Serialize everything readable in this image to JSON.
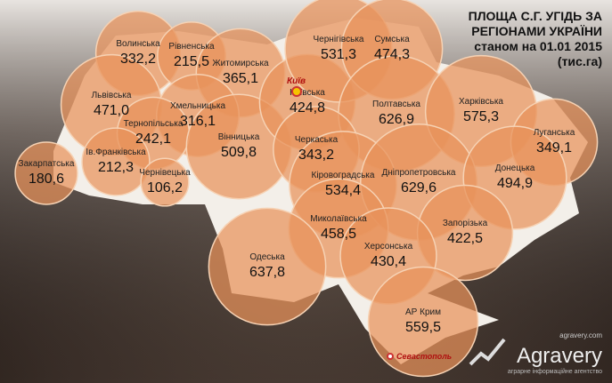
{
  "title": [
    "ПЛОЩА С.Г. УГІДЬ ЗА",
    "РЕГІОНАМИ УКРАЇНИ",
    "станом на 01.01 2015",
    "(тис.га)"
  ],
  "regions": [
    {
      "name": "Волинська",
      "value": 332.2,
      "value_label": "332,2"
    },
    {
      "name": "Рівненська",
      "value": 215.5,
      "value_label": "215,5"
    },
    {
      "name": "Житомирська",
      "value": 365.1,
      "value_label": "365,1"
    },
    {
      "name": "Львівська",
      "value": 471.0,
      "value_label": "471,0"
    },
    {
      "name": "Хмельницька",
      "value": 316.1,
      "value_label": "316,1"
    },
    {
      "name": "Тернопільська",
      "value": 242.1,
      "value_label": "242,1"
    },
    {
      "name": "Закарпатська",
      "value": 180.6,
      "value_label": "180,6"
    },
    {
      "name": "Ів.Франківська",
      "value": 212.3,
      "value_label": "212,3"
    },
    {
      "name": "Чернівецька",
      "value": 106.2,
      "value_label": "106,2"
    },
    {
      "name": "Вінницька",
      "value": 509.8,
      "value_label": "509,8"
    },
    {
      "name": "Київська",
      "value": 424.8,
      "value_label": "424,8"
    },
    {
      "name": "Чернігівська",
      "value": 531.3,
      "value_label": "531,3"
    },
    {
      "name": "Сумська",
      "value": 474.3,
      "value_label": "474,3"
    },
    {
      "name": "Полтавська",
      "value": 626.9,
      "value_label": "626,9"
    },
    {
      "name": "Харківська",
      "value": 575.3,
      "value_label": "575,3"
    },
    {
      "name": "Луганська",
      "value": 349.1,
      "value_label": "349,1"
    },
    {
      "name": "Черкаська",
      "value": 343.2,
      "value_label": "343,2"
    },
    {
      "name": "Кіровоградська",
      "value": 534.4,
      "value_label": "534,4"
    },
    {
      "name": "Дніпропетровська",
      "value": 629.6,
      "value_label": "629,6"
    },
    {
      "name": "Донецька",
      "value": 494.9,
      "value_label": "494,9"
    },
    {
      "name": "Запорізька",
      "value": 422.5,
      "value_label": "422,5"
    },
    {
      "name": "Миколаївська",
      "value": 458.5,
      "value_label": "458,5"
    },
    {
      "name": "Херсонська",
      "value": 430.4,
      "value_label": "430,4"
    },
    {
      "name": "Одеська",
      "value": 637.8,
      "value_label": "637,8"
    },
    {
      "name": "АР Крим",
      "value": 559.5,
      "value_label": "559,5"
    }
  ],
  "cities": [
    "Київ",
    "Севастополь"
  ],
  "brand": {
    "site": "agravery.com",
    "name": "Agravery",
    "tagline": "аграрне інформаційне агентство"
  }
}
